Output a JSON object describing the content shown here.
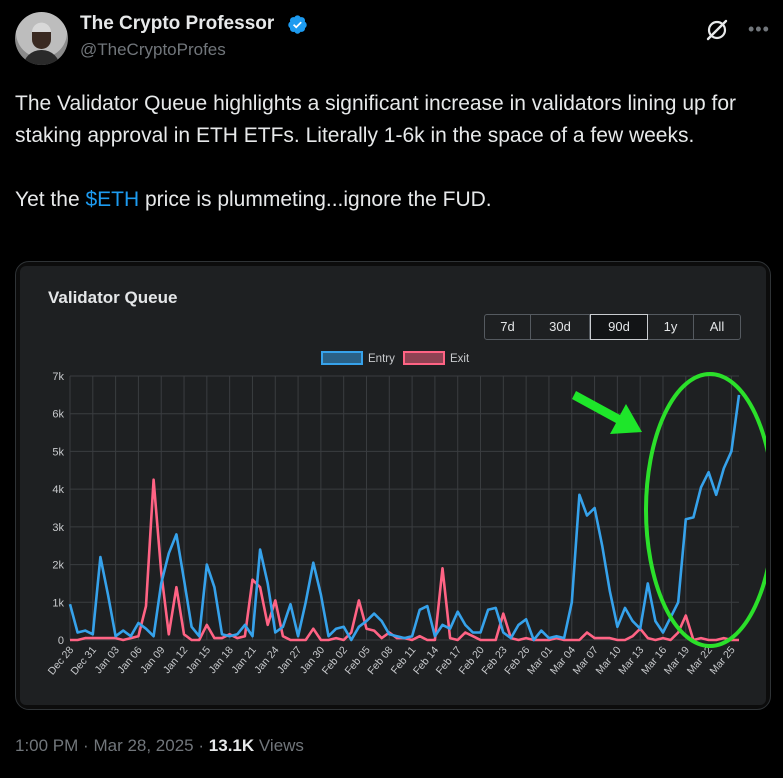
{
  "author": {
    "name": "The Crypto Professor",
    "handle": "@TheCryptoProfes",
    "verified": true
  },
  "tweet": {
    "paragraph1": "The Validator Queue highlights a significant increase in validators lining up for staking approval in ETH ETFs. Literally 1-6k in the space of a few weeks.",
    "p2_before": "Yet the ",
    "p2_cashtag": "$ETH",
    "p2_after": " price is plummeting...ignore the FUD."
  },
  "footer": {
    "time": "1:00 PM",
    "date": "Mar 28, 2025",
    "views_count": "13.1K",
    "views_label": "Views",
    "separator": "·"
  },
  "icons": {
    "grok": "grok-icon",
    "more": "more-icon",
    "verified": "verified-badge-icon"
  },
  "colors": {
    "entry": "#36a2eb",
    "exit": "#ff6384",
    "arrow": "#1ee62a",
    "circle": "#2be02a",
    "link": "#1d9bf0"
  },
  "chart_data": {
    "type": "line",
    "title": "Validator Queue",
    "range_buttons": [
      "7d",
      "30d",
      "90d",
      "1y",
      "All"
    ],
    "active_range": "90d",
    "legend_position": "top-center",
    "grid": true,
    "ylim": [
      0,
      7000
    ],
    "y_ticks": [
      "0",
      "1k",
      "2k",
      "3k",
      "4k",
      "5k",
      "6k",
      "7k"
    ],
    "x_tick_labels": [
      "Dec 28",
      "Dec 31",
      "Jan 03",
      "Jan 06",
      "Jan 09",
      "Jan 12",
      "Jan 15",
      "Jan 18",
      "Jan 21",
      "Jan 24",
      "Jan 27",
      "Jan 30",
      "Feb 02",
      "Feb 05",
      "Feb 08",
      "Feb 11",
      "Feb 14",
      "Feb 17",
      "Feb 20",
      "Feb 23",
      "Feb 26",
      "Mar 01",
      "Mar 04",
      "Mar 07",
      "Mar 10",
      "Mar 13",
      "Mar 16",
      "Mar 19",
      "Mar 22",
      "Mar 25"
    ],
    "series": [
      {
        "name": "Entry",
        "values": [
          950,
          200,
          250,
          150,
          2200,
          1200,
          100,
          250,
          100,
          450,
          300,
          100,
          1500,
          2300,
          2800,
          1600,
          350,
          100,
          2000,
          1400,
          150,
          100,
          150,
          400,
          100,
          2400,
          1500,
          200,
          350,
          950,
          100,
          1000,
          2050,
          1200,
          100,
          300,
          350,
          0,
          350,
          500,
          700,
          500,
          150,
          100,
          50,
          100,
          800,
          900,
          100,
          400,
          300,
          750,
          400,
          200,
          200,
          800,
          850,
          200,
          50,
          400,
          550,
          0,
          250,
          50,
          100,
          50,
          1000,
          3850,
          3300,
          3500,
          2500,
          1300,
          350,
          850,
          500,
          300,
          1500,
          500,
          200,
          600,
          1000,
          3200,
          3250,
          4050,
          4450,
          3850,
          4550,
          5000,
          6500
        ]
      },
      {
        "name": "Exit",
        "values": [
          0,
          0,
          50,
          50,
          50,
          50,
          50,
          0,
          50,
          100,
          900,
          4250,
          1800,
          150,
          1400,
          150,
          0,
          0,
          400,
          50,
          50,
          150,
          50,
          100,
          1600,
          1400,
          400,
          1050,
          100,
          0,
          0,
          0,
          300,
          0,
          0,
          50,
          0,
          200,
          1050,
          300,
          250,
          50,
          200,
          50,
          50,
          0,
          100,
          0,
          0,
          1900,
          50,
          0,
          200,
          100,
          0,
          0,
          0,
          700,
          50,
          0,
          50,
          0,
          0,
          0,
          50,
          0,
          0,
          0,
          200,
          50,
          50,
          50,
          0,
          0,
          100,
          300,
          50,
          0,
          50,
          0,
          200,
          650,
          0,
          50,
          0,
          0,
          50,
          0,
          0
        ]
      }
    ]
  }
}
